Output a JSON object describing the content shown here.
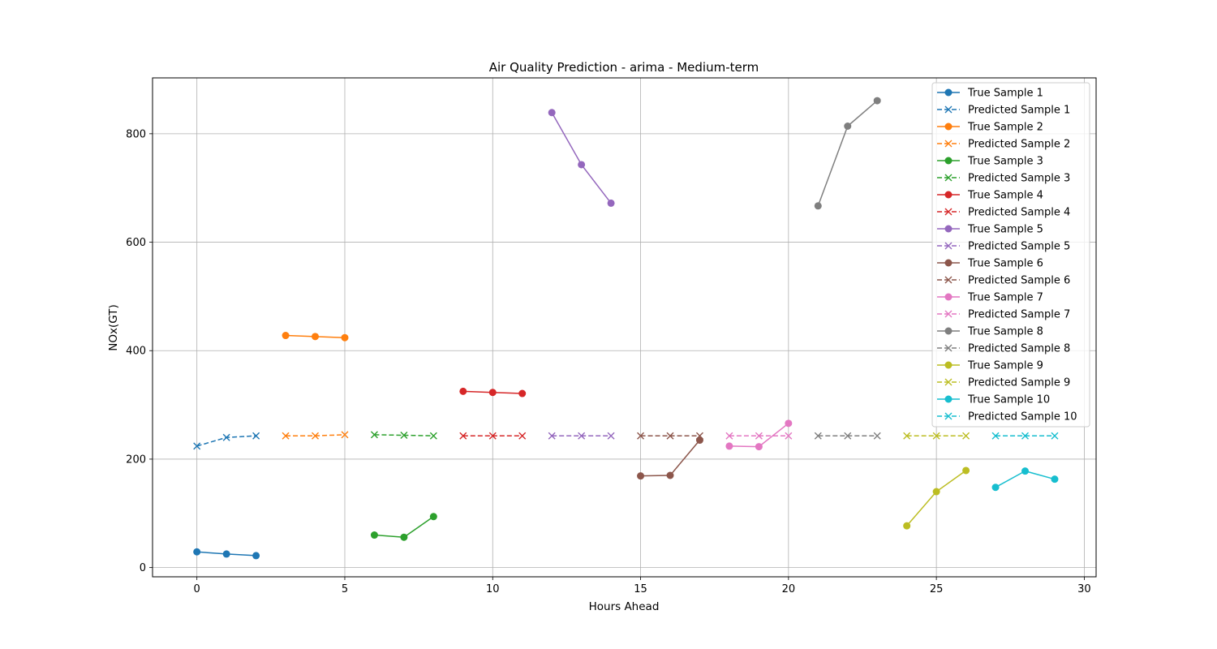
{
  "chart_data": {
    "type": "line",
    "title": "Air Quality Prediction - arima - Medium-term",
    "xlabel": "Hours Ahead",
    "ylabel": "NOx(GT)",
    "xlim": [
      -1.5,
      30.4
    ],
    "ylim": [
      -17,
      903
    ],
    "xticks": [
      0,
      5,
      10,
      15,
      20,
      25,
      30
    ],
    "yticks": [
      0,
      200,
      400,
      600,
      800
    ],
    "grid": true,
    "legend_position": "top-right",
    "series": [
      {
        "name": "True Sample 1",
        "style": "solid-circle",
        "color": "#1f77b4",
        "x": [
          0,
          1,
          2
        ],
        "y": [
          29,
          25,
          22
        ]
      },
      {
        "name": "Predicted Sample 1",
        "style": "dashed-x",
        "color": "#1f77b4",
        "x": [
          0,
          1,
          2
        ],
        "y": [
          224,
          240,
          243
        ]
      },
      {
        "name": "True Sample 2",
        "style": "solid-circle",
        "color": "#ff7f0e",
        "x": [
          3,
          4,
          5
        ],
        "y": [
          428,
          426,
          424
        ]
      },
      {
        "name": "Predicted Sample 2",
        "style": "dashed-x",
        "color": "#ff7f0e",
        "x": [
          3,
          4,
          5
        ],
        "y": [
          243,
          243,
          245
        ]
      },
      {
        "name": "True Sample 3",
        "style": "solid-circle",
        "color": "#2ca02c",
        "x": [
          6,
          7,
          8
        ],
        "y": [
          60,
          56,
          94
        ]
      },
      {
        "name": "Predicted Sample 3",
        "style": "dashed-x",
        "color": "#2ca02c",
        "x": [
          6,
          7,
          8
        ],
        "y": [
          245,
          244,
          243
        ]
      },
      {
        "name": "True Sample 4",
        "style": "solid-circle",
        "color": "#d62728",
        "x": [
          9,
          10,
          11
        ],
        "y": [
          325,
          323,
          321
        ]
      },
      {
        "name": "Predicted Sample 4",
        "style": "dashed-x",
        "color": "#d62728",
        "x": [
          9,
          10,
          11
        ],
        "y": [
          243,
          243,
          243
        ]
      },
      {
        "name": "True Sample 5",
        "style": "solid-circle",
        "color": "#9467bd",
        "x": [
          12,
          13,
          14
        ],
        "y": [
          839,
          743,
          672
        ]
      },
      {
        "name": "Predicted Sample 5",
        "style": "dashed-x",
        "color": "#9467bd",
        "x": [
          12,
          13,
          14
        ],
        "y": [
          243,
          243,
          243
        ]
      },
      {
        "name": "True Sample 6",
        "style": "solid-circle",
        "color": "#8c564b",
        "x": [
          15,
          16,
          17
        ],
        "y": [
          169,
          170,
          235
        ]
      },
      {
        "name": "Predicted Sample 6",
        "style": "dashed-x",
        "color": "#8c564b",
        "x": [
          15,
          16,
          17
        ],
        "y": [
          243,
          243,
          243
        ]
      },
      {
        "name": "True Sample 7",
        "style": "solid-circle",
        "color": "#e377c2",
        "x": [
          18,
          19,
          20
        ],
        "y": [
          224,
          223,
          266
        ]
      },
      {
        "name": "Predicted Sample 7",
        "style": "dashed-x",
        "color": "#e377c2",
        "x": [
          18,
          19,
          20
        ],
        "y": [
          243,
          243,
          243
        ]
      },
      {
        "name": "True Sample 8",
        "style": "solid-circle",
        "color": "#7f7f7f",
        "x": [
          21,
          22,
          23
        ],
        "y": [
          667,
          814,
          861
        ]
      },
      {
        "name": "Predicted Sample 8",
        "style": "dashed-x",
        "color": "#7f7f7f",
        "x": [
          21,
          22,
          23
        ],
        "y": [
          243,
          243,
          243
        ]
      },
      {
        "name": "True Sample 9",
        "style": "solid-circle",
        "color": "#bcbd22",
        "x": [
          24,
          25,
          26
        ],
        "y": [
          77,
          140,
          179
        ]
      },
      {
        "name": "Predicted Sample 9",
        "style": "dashed-x",
        "color": "#bcbd22",
        "x": [
          24,
          25,
          26
        ],
        "y": [
          243,
          243,
          243
        ]
      },
      {
        "name": "True Sample 10",
        "style": "solid-circle",
        "color": "#17becf",
        "x": [
          27,
          28,
          29
        ],
        "y": [
          148,
          178,
          163
        ]
      },
      {
        "name": "Predicted Sample 10",
        "style": "dashed-x",
        "color": "#17becf",
        "x": [
          27,
          28,
          29
        ],
        "y": [
          243,
          243,
          243
        ]
      }
    ]
  }
}
